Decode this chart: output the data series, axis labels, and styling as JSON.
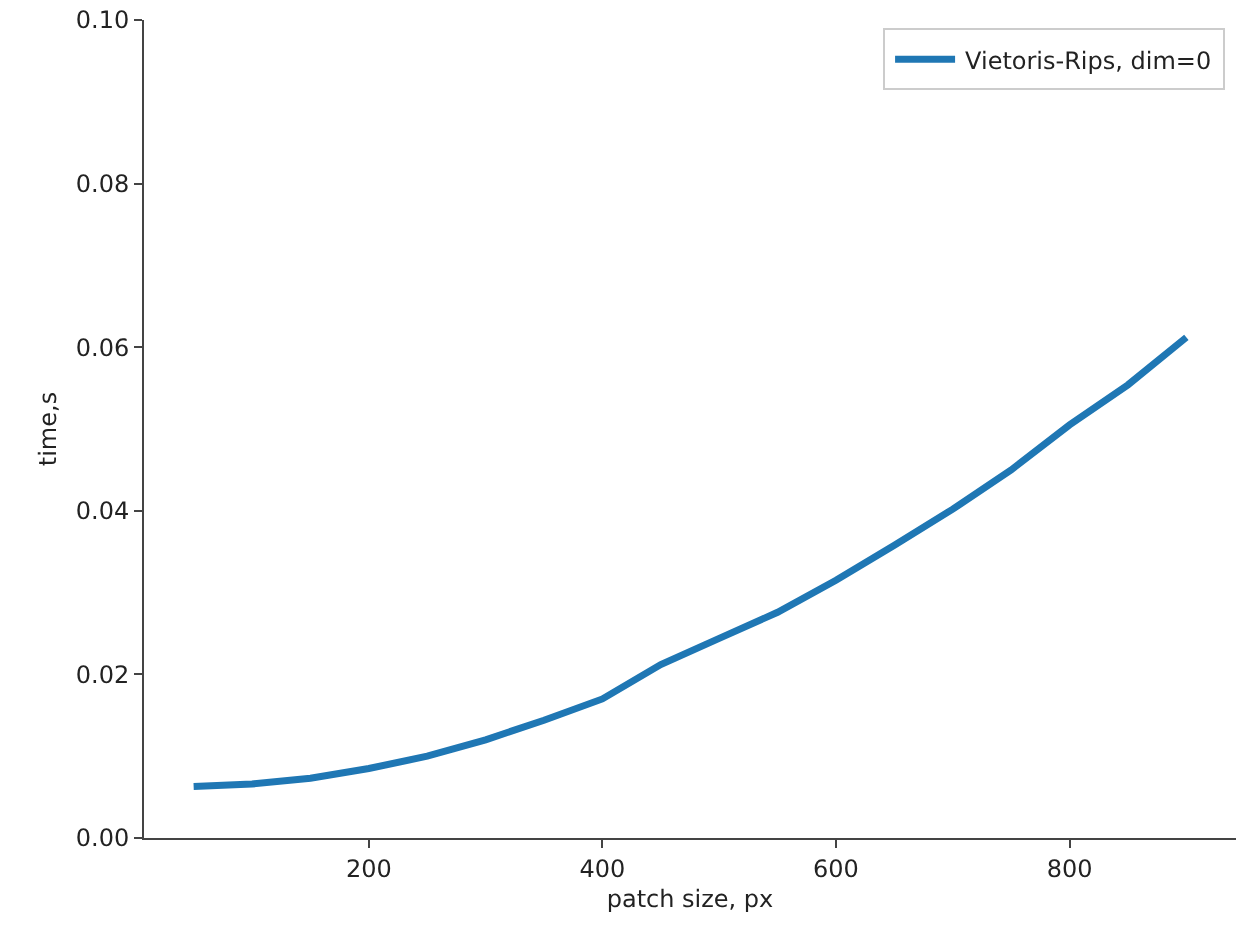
{
  "chart_data": {
    "type": "line",
    "xlabel": "patch size, px",
    "ylabel": "time,s",
    "x": [
      50,
      100,
      150,
      200,
      250,
      300,
      350,
      400,
      450,
      500,
      550,
      600,
      650,
      700,
      750,
      800,
      850,
      900
    ],
    "series": [
      {
        "name": "Vietoris-Rips, dim=0",
        "color": "#1f77b4",
        "values": [
          0.0063,
          0.0066,
          0.0073,
          0.0085,
          0.01,
          0.012,
          0.0144,
          0.017,
          0.0212,
          0.0244,
          0.0276,
          0.0315,
          0.0358,
          0.0402,
          0.045,
          0.0505,
          0.0554,
          0.0612
        ]
      }
    ],
    "xlim": [
      7.5,
      942.5
    ],
    "xticks": [
      200,
      400,
      600,
      800
    ],
    "ylim": [
      0,
      0.1
    ],
    "yticks": [
      {
        "value": 0,
        "label": "0.00"
      },
      {
        "value": 0.02,
        "label": "0.02"
      },
      {
        "value": 0.04,
        "label": "0.04"
      },
      {
        "value": 0.06,
        "label": "0.06"
      },
      {
        "value": 0.08,
        "label": "0.08"
      },
      {
        "value": 0.1,
        "label": "0.10"
      }
    ],
    "legend": "top right",
    "marker": "none",
    "line_style": "solid"
  }
}
